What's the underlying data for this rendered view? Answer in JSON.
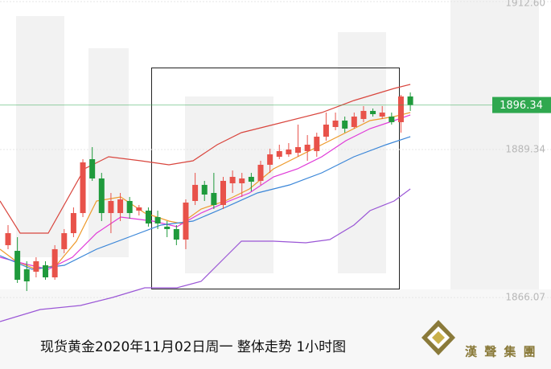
{
  "chart_data": {
    "type": "candlestick",
    "title": "现货黄金2020年11月02日周一 整体走势 1小时图",
    "ylim": [
      1854.83,
      1912.85
    ],
    "yticks": [
      {
        "value": 1912.6,
        "label": "1912.60"
      },
      1889.34,
      1866.07
    ],
    "grid": true,
    "up_color": "#e8524a",
    "down_color": "#1f9a3c",
    "last_price": 1896.34,
    "last_price_color": "#2fa84f",
    "open": [
      1874.3,
      1873.41,
      1870.51,
      1870.13,
      1871.14,
      1869.24,
      1873.67,
      1876.19,
      1879.35,
      1887.82,
      1884.79,
      1879.35,
      1879.35,
      1881.25,
      1879.73,
      1879.73,
      1878.72,
      1877.21,
      1876.83,
      1875.18,
      1881.25,
      1883.78,
      1882.51,
      1880.62,
      1884.03,
      1884.03,
      1885.04,
      1884.41,
      1886.94,
      1888.2,
      1888.58,
      1888.83,
      1889.09,
      1889.09,
      1891.36,
      1892.88,
      1893.89,
      1892.88,
      1894.14,
      1895.41,
      1894.52,
      1894.52,
      1893.64,
      1897.68
    ],
    "high": [
      1877.46,
      1875.56,
      1871.77,
      1872.4,
      1871.77,
      1874.3,
      1876.83,
      1880.24,
      1887.82,
      1889.72,
      1885.67,
      1882.51,
      1882.51,
      1881.88,
      1880.62,
      1880.24,
      1879.73,
      1878.09,
      1877.46,
      1881.5,
      1885.67,
      1884.41,
      1885.67,
      1885.04,
      1886.05,
      1885.67,
      1885.67,
      1887.57,
      1889.47,
      1890.1,
      1890.35,
      1893.26,
      1891.61,
      1891.99,
      1895.15,
      1895.15,
      1894.52,
      1895.15,
      1896.17,
      1895.79,
      1896.17,
      1895.15,
      1897.93,
      1898.31
    ],
    "low": [
      1873.67,
      1868.36,
      1867.09,
      1869.24,
      1868.86,
      1868.86,
      1873.03,
      1875.56,
      1878.72,
      1884.41,
      1878.09,
      1876.19,
      1878.09,
      1878.47,
      1878.97,
      1877.21,
      1876.83,
      1875.56,
      1874.3,
      1873.67,
      1880.62,
      1881.25,
      1879.99,
      1879.99,
      1882.51,
      1881.88,
      1882.77,
      1883.78,
      1885.67,
      1887.82,
      1888.2,
      1888.2,
      1887.57,
      1888.2,
      1890.73,
      1892.37,
      1891.99,
      1892.63,
      1893.64,
      1894.52,
      1894.14,
      1893.26,
      1891.99,
      1895.41
    ],
    "close": [
      1876.19,
      1868.86,
      1868.61,
      1871.77,
      1869.24,
      1873.67,
      1876.19,
      1879.35,
      1887.32,
      1884.79,
      1879.35,
      1881.25,
      1881.5,
      1879.35,
      1880.24,
      1877.71,
      1877.71,
      1876.83,
      1875.18,
      1881.0,
      1883.78,
      1882.26,
      1880.62,
      1884.41,
      1885.04,
      1884.79,
      1884.28,
      1886.94,
      1888.58,
      1889.09,
      1889.34,
      1889.72,
      1890.1,
      1891.36,
      1893.26,
      1893.89,
      1892.63,
      1894.52,
      1895.41,
      1894.9,
      1895.15,
      1893.64,
      1897.68,
      1896.34
    ],
    "lines": [
      {
        "color": "#d9463e",
        "x": [
          -0.86,
          1.29,
          4.3,
          8.17,
          10.75,
          14.19,
          17.2,
          19.78,
          22.36,
          24.94,
          28.38,
          33.53,
          36.97,
          41.27,
          43.0
        ],
        "values": [
          1881.25,
          1876.19,
          1876.19,
          1886.31,
          1888.2,
          1887.57,
          1886.94,
          1887.57,
          1890.1,
          1891.99,
          1893.26,
          1895.15,
          1897.05,
          1898.95,
          1899.58
        ]
      },
      {
        "color": "#ee9a2a",
        "x": [
          -0.86,
          0.86,
          3.01,
          5.16,
          7.31,
          9.46,
          12.04,
          14.62,
          17.2,
          18.49,
          20.64,
          23.22,
          25.8,
          28.38,
          30.95,
          33.53,
          36.11,
          38.69,
          41.27,
          43.0
        ],
        "values": [
          1873.67,
          1871.77,
          1870.51,
          1871.14,
          1874.93,
          1881.25,
          1881.88,
          1879.35,
          1878.09,
          1877.71,
          1879.99,
          1881.25,
          1883.15,
          1886.31,
          1888.2,
          1890.1,
          1891.99,
          1893.89,
          1894.52,
          1895.15
        ]
      },
      {
        "color": "#e03ad8",
        "x": [
          -0.86,
          1.72,
          4.3,
          6.88,
          9.46,
          12.04,
          15.48,
          18.06,
          20.64,
          23.22,
          25.8,
          28.38,
          30.95,
          33.53,
          36.11,
          38.69,
          41.27,
          43.0
        ],
        "values": [
          1872.4,
          1871.39,
          1870.51,
          1872.4,
          1876.19,
          1878.72,
          1878.09,
          1877.21,
          1879.35,
          1881.0,
          1882.51,
          1885.04,
          1886.31,
          1888.2,
          1890.73,
          1892.63,
          1893.89,
          1894.78
        ]
      },
      {
        "color": "#3a86d8",
        "x": [
          -0.86,
          2.58,
          6.02,
          9.46,
          12.9,
          16.34,
          19.78,
          23.22,
          26.66,
          30.1,
          33.53,
          36.97,
          40.41,
          43.0
        ],
        "values": [
          1872.65,
          1870.51,
          1871.14,
          1873.67,
          1875.56,
          1877.46,
          1878.09,
          1880.24,
          1882.51,
          1883.78,
          1885.67,
          1888.2,
          1890.1,
          1891.36
        ]
      },
      {
        "color": "#9a56d6",
        "x": [
          -0.86,
          3.44,
          7.74,
          11.18,
          14.62,
          18.06,
          20.64,
          23.22,
          24.94,
          28.38,
          31.82,
          34.39,
          36.97,
          38.69,
          41.27,
          43.0
        ],
        "values": [
          1862.29,
          1864.19,
          1864.82,
          1866.08,
          1867.6,
          1867.6,
          1868.61,
          1872.4,
          1874.93,
          1874.93,
          1874.68,
          1875.18,
          1877.46,
          1879.73,
          1881.25,
          1883.15
        ]
      }
    ]
  },
  "brand": "漢 聲 集 團"
}
